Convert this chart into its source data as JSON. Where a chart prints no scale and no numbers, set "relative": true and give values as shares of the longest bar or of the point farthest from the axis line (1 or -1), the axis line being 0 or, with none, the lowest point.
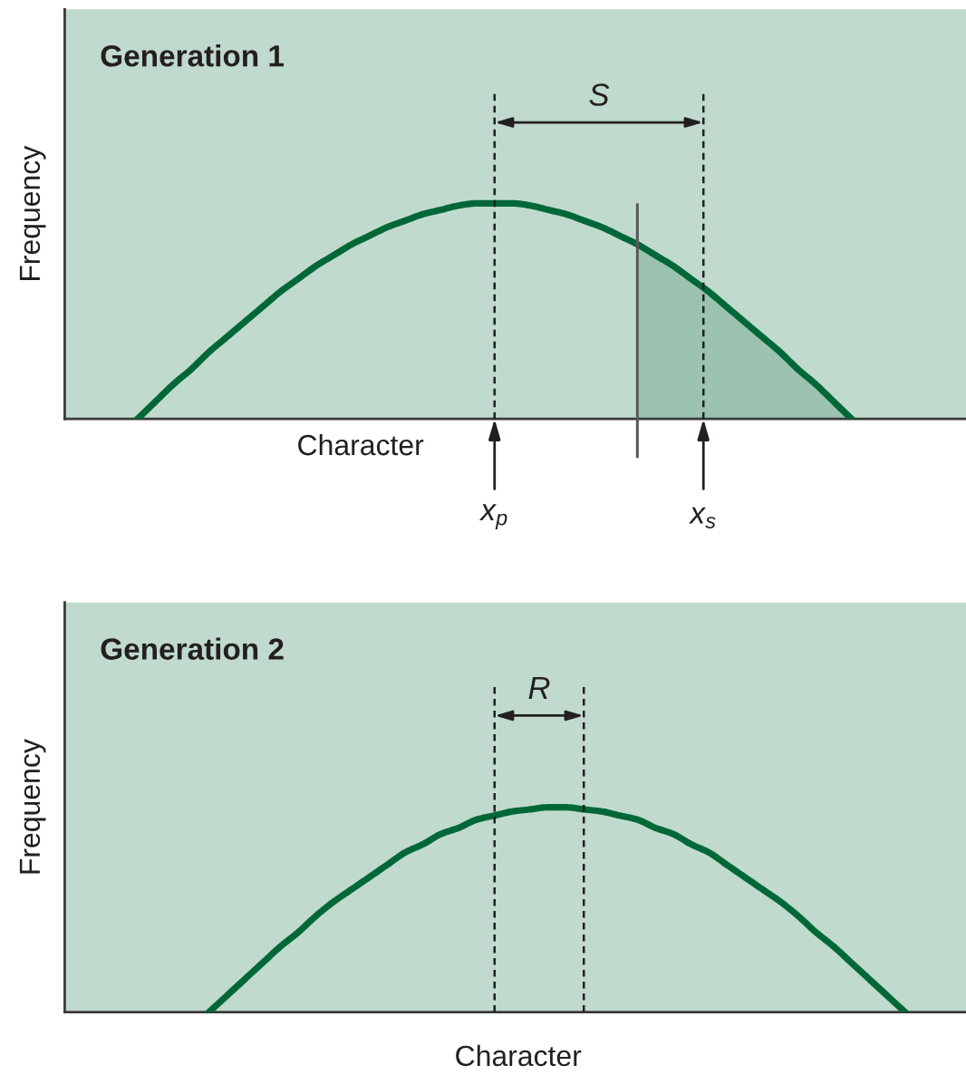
{
  "chart_data": [
    {
      "type": "line",
      "title": "Generation 1",
      "xlabel": "Character",
      "ylabel": "Frequency",
      "relative": true,
      "tick_labels": false,
      "categories": [
        null,
        null,
        null,
        null,
        null,
        null,
        null,
        null,
        null,
        null,
        null,
        null,
        null,
        null,
        null,
        null,
        null,
        null,
        null,
        null,
        null,
        null,
        null,
        null,
        null,
        null,
        null,
        null,
        null,
        null,
        null,
        null,
        null,
        null,
        null,
        null,
        null,
        null,
        null,
        null,
        null,
        null,
        null,
        null,
        null,
        null,
        null,
        null,
        null,
        null,
        null
      ],
      "series": [
        {
          "type": "area",
          "color": "#9bc3af",
          "values": [
            null,
            null,
            null,
            null,
            null,
            null,
            null,
            null,
            null,
            null,
            null,
            null,
            null,
            null,
            null,
            null,
            null,
            null,
            null,
            null,
            null,
            null,
            null,
            null,
            null,
            null,
            null,
            null,
            null,
            null,
            null,
            null,
            0.81,
            0.76,
            0.71,
            0.65,
            0.59,
            0.52,
            0.45,
            0.38,
            0.31,
            0.23,
            0.16,
            0.08,
            0,
            null,
            null,
            null,
            null,
            null,
            null
          ]
        },
        {
          "color": "#006838",
          "values": [
            null,
            null,
            null,
            null,
            0,
            0.08,
            0.16,
            0.23,
            0.31,
            0.38,
            0.45,
            0.52,
            0.59,
            0.65,
            0.71,
            0.76,
            0.81,
            0.85,
            0.89,
            0.92,
            0.95,
            0.97,
            0.99,
            1,
            1,
            1,
            0.99,
            0.97,
            0.95,
            0.92,
            0.89,
            0.85,
            0.81,
            0.76,
            0.71,
            0.65,
            0.59,
            0.52,
            0.45,
            0.38,
            0.31,
            0.23,
            0.16,
            0.08,
            0,
            null,
            null,
            null,
            null,
            null,
            null
          ]
        }
      ],
      "annotations": [
        "S",
        "x$_{p}$",
        "x$_{s}$"
      ]
    },
    {
      "type": "line",
      "title": "Generation 2",
      "xlabel": "Character",
      "ylabel": "Frequency",
      "relative": true,
      "tick_labels": false,
      "categories": [
        null,
        null,
        null,
        null,
        null,
        null,
        null,
        null,
        null,
        null,
        null,
        null,
        null,
        null,
        null,
        null,
        null,
        null,
        null,
        null,
        null,
        null,
        null,
        null,
        null,
        null,
        null,
        null,
        null,
        null,
        null,
        null,
        null,
        null,
        null,
        null,
        null,
        null,
        null,
        null,
        null,
        null,
        null,
        null,
        null,
        null,
        null,
        null,
        null,
        null,
        null
      ],
      "series": [
        {
          "color": "#006838",
          "values": [
            null,
            null,
            null,
            null,
            null,
            null,
            null,
            null,
            0,
            0.08,
            0.16,
            0.24,
            0.32,
            0.39,
            0.47,
            0.54,
            0.6,
            0.66,
            0.72,
            0.78,
            0.82,
            0.87,
            0.9,
            0.94,
            0.96,
            0.98,
            0.99,
            1,
            1,
            0.99,
            0.98,
            0.96,
            0.94,
            0.9,
            0.87,
            0.82,
            0.78,
            0.72,
            0.66,
            0.6,
            0.54,
            0.47,
            0.39,
            0.32,
            0.24,
            0.16,
            0.08,
            0,
            null,
            null,
            null
          ]
        }
      ],
      "annotations": [
        "R"
      ]
    }
  ]
}
